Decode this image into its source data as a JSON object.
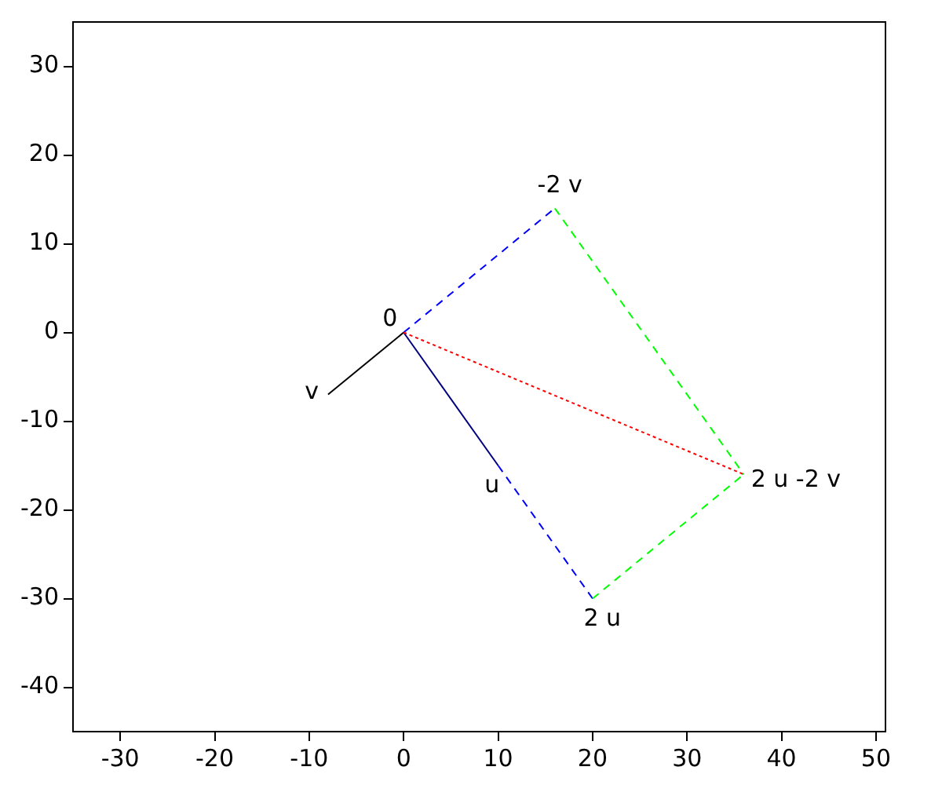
{
  "chart_data": {
    "type": "line",
    "xlim": [
      -35,
      51
    ],
    "ylim": [
      -45,
      35
    ],
    "xticks": [
      -30,
      -20,
      -10,
      0,
      10,
      20,
      30,
      40,
      50
    ],
    "yticks": [
      -40,
      -30,
      -20,
      -10,
      0,
      10,
      20,
      30
    ],
    "grid": false,
    "legend": false,
    "marker": "none",
    "series": [
      {
        "color": "#000000",
        "x": [
          0,
          -8
        ],
        "values": [
          0,
          -7
        ],
        "line_style": "solid"
      },
      {
        "color": "#000080",
        "x": [
          0,
          10
        ],
        "values": [
          0,
          -15
        ],
        "line_style": "solid"
      },
      {
        "color": "#0000ff",
        "x": [
          0,
          16
        ],
        "values": [
          0,
          14
        ],
        "line_style": "dashed"
      },
      {
        "color": "#0000ff",
        "x": [
          10,
          20
        ],
        "values": [
          -15,
          -30
        ],
        "line_style": "dashed"
      },
      {
        "color": "#00ff00",
        "x": [
          16,
          36
        ],
        "values": [
          14,
          -16
        ],
        "line_style": "dashed"
      },
      {
        "color": "#00ff00",
        "x": [
          20,
          36
        ],
        "values": [
          -30,
          -16
        ],
        "line_style": "dashed"
      },
      {
        "color": "#ff0000",
        "x": [
          0,
          36
        ],
        "values": [
          0,
          -16
        ],
        "line_style": "dotted"
      }
    ],
    "annotations": [
      {
        "text": "0",
        "x": 0,
        "y": 0
      },
      {
        "text": "v",
        "x": -8,
        "y": -7
      },
      {
        "text": "u",
        "x": 10,
        "y": -15
      },
      {
        "text": "2 u",
        "x": 20,
        "y": -30
      },
      {
        "text": "-2 v",
        "x": 16,
        "y": 14
      },
      {
        "text": "2 u -2 v",
        "x": 36,
        "y": -16
      }
    ]
  }
}
